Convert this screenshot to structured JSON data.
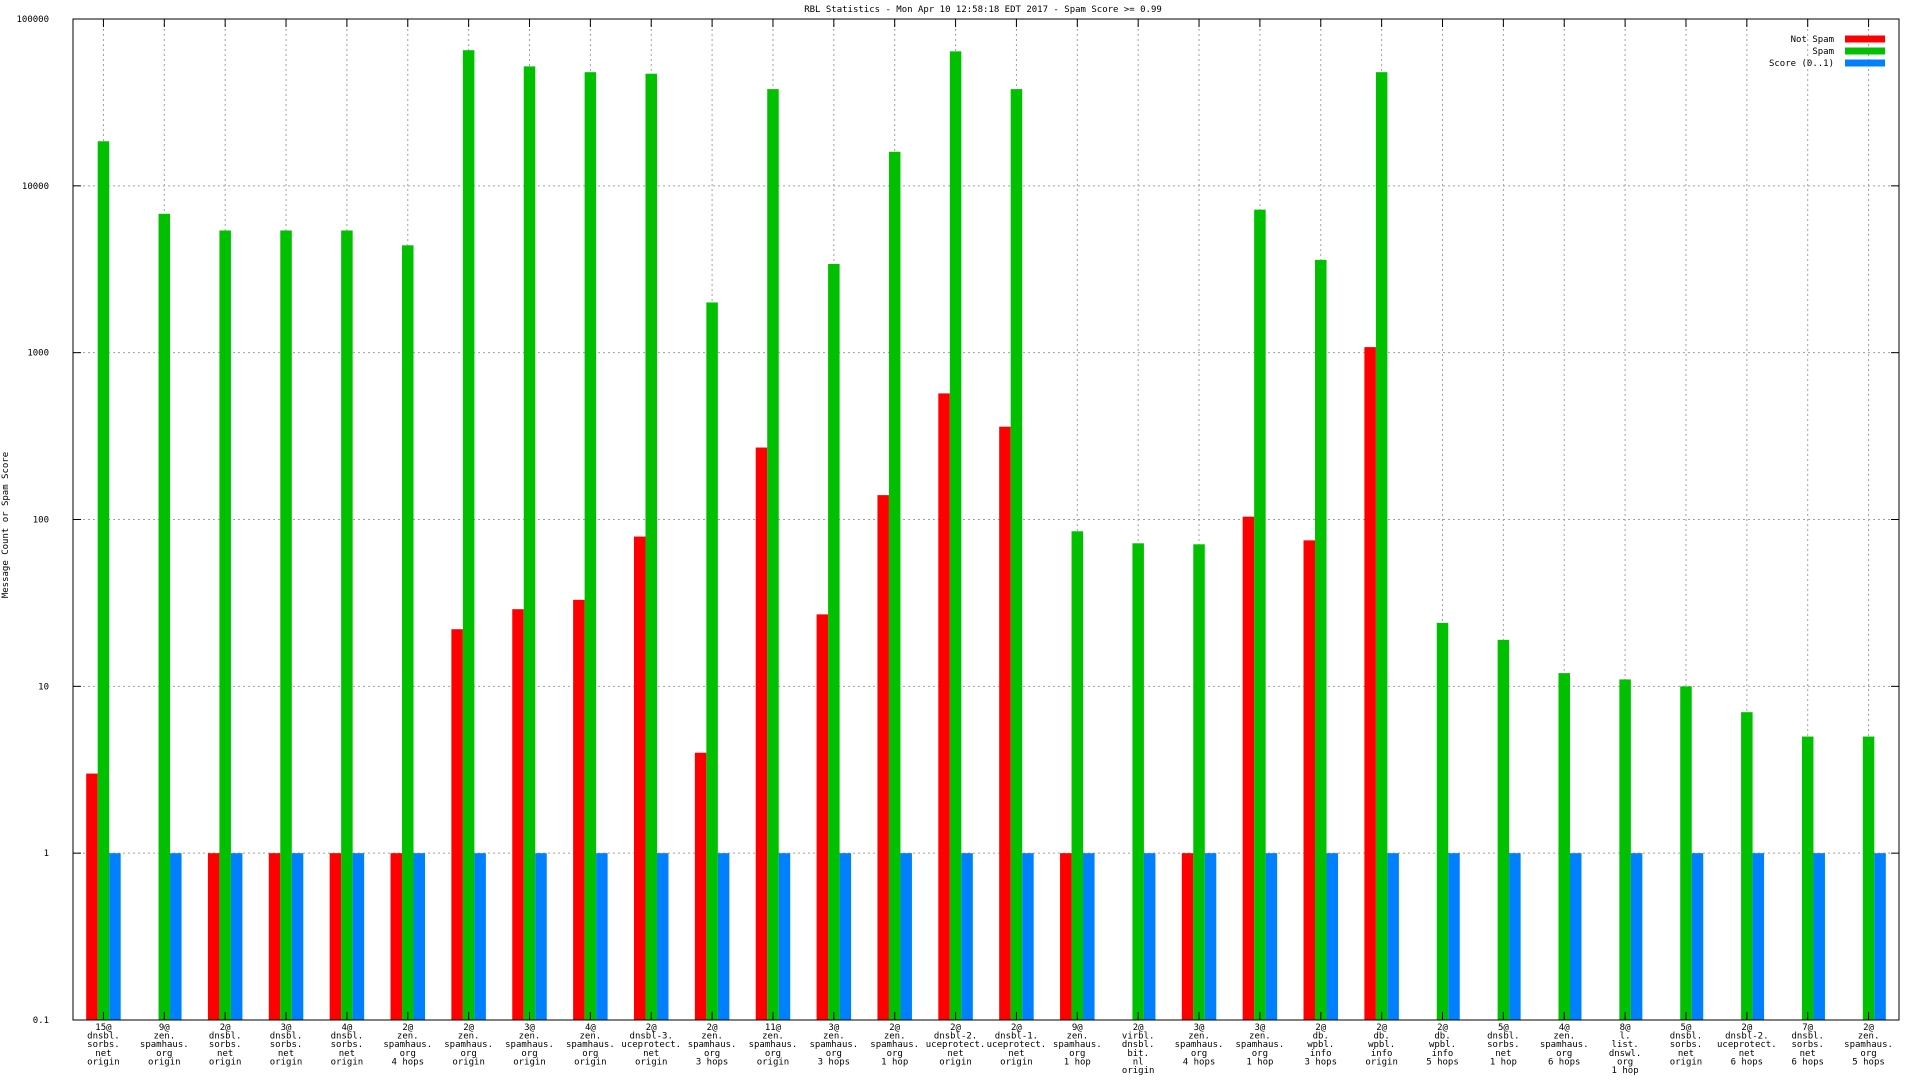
{
  "chart_data": {
    "type": "bar",
    "title": "RBL Statistics - Mon Apr 10 12:58:18 EDT 2017 - Spam Score >= 0.99",
    "xlabel": "",
    "ylabel": "Message Count or Spam Score",
    "yscale": "log",
    "ylim": [
      0.1,
      100000
    ],
    "yticks": [
      "0.1",
      "1",
      "10",
      "100",
      "1000",
      "10000",
      "100000"
    ],
    "grid": true,
    "legend_position": "top-right",
    "categories": [
      [
        "15@",
        "dnsbl.",
        "sorbs.",
        "net",
        "origin"
      ],
      [
        "9@",
        "zen.",
        "spamhaus.",
        "org",
        "origin"
      ],
      [
        "2@",
        "dnsbl.",
        "sorbs.",
        "net",
        "origin"
      ],
      [
        "3@",
        "dnsbl.",
        "sorbs.",
        "net",
        "origin"
      ],
      [
        "4@",
        "dnsbl.",
        "sorbs.",
        "net",
        "origin"
      ],
      [
        "2@",
        "zen.",
        "spamhaus.",
        "org",
        "4 hops"
      ],
      [
        "2@",
        "zen.",
        "spamhaus.",
        "org",
        "origin"
      ],
      [
        "3@",
        "zen.",
        "spamhaus.",
        "org",
        "origin"
      ],
      [
        "4@",
        "zen.",
        "spamhaus.",
        "org",
        "origin"
      ],
      [
        "2@",
        "dnsbl-3.",
        "uceprotect.",
        "net",
        "origin"
      ],
      [
        "2@",
        "zen.",
        "spamhaus.",
        "org",
        "3 hops"
      ],
      [
        "11@",
        "zen.",
        "spamhaus.",
        "org",
        "origin"
      ],
      [
        "3@",
        "zen.",
        "spamhaus.",
        "org",
        "3 hops"
      ],
      [
        "2@",
        "zen.",
        "spamhaus.",
        "org",
        "1 hop"
      ],
      [
        "2@",
        "dnsbl-2.",
        "uceprotect.",
        "net",
        "origin"
      ],
      [
        "2@",
        "dnsbl-1.",
        "uceprotect.",
        "net",
        "origin"
      ],
      [
        "9@",
        "zen.",
        "spamhaus.",
        "org",
        "1 hop"
      ],
      [
        "2@",
        "virbl.",
        "dnsbl.",
        "bit.",
        "nl",
        "origin"
      ],
      [
        "3@",
        "zen.",
        "spamhaus.",
        "org",
        "4 hops"
      ],
      [
        "3@",
        "zen.",
        "spamhaus.",
        "org",
        "1 hop"
      ],
      [
        "2@",
        "db.",
        "wpbl.",
        "info",
        "3 hops"
      ],
      [
        "2@",
        "db.",
        "wpbl.",
        "info",
        "origin"
      ],
      [
        "2@",
        "db.",
        "wpbl.",
        "info",
        "5 hops"
      ],
      [
        "5@",
        "dnsbl.",
        "sorbs.",
        "net",
        "1 hop"
      ],
      [
        "4@",
        "zen.",
        "spamhaus.",
        "org",
        "6 hops"
      ],
      [
        "8@",
        "l.",
        "list.",
        "dnswl.",
        "org",
        "1 hop"
      ],
      [
        "5@",
        "dnsbl.",
        "sorbs.",
        "net",
        "origin"
      ],
      [
        "2@",
        "dnsbl-2.",
        "uceprotect.",
        "net",
        "6 hops"
      ],
      [
        "7@",
        "dnsbl.",
        "sorbs.",
        "net",
        "6 hops"
      ],
      [
        "2@",
        "zen.",
        "spamhaus.",
        "org",
        "5 hops"
      ]
    ],
    "series": [
      {
        "name": "Not Spam",
        "color": "#ff0000",
        "values": [
          3,
          null,
          1,
          1,
          1,
          1,
          22,
          29,
          33,
          79,
          4,
          270,
          27,
          140,
          570,
          360,
          1,
          null,
          1,
          104,
          75,
          1080,
          null,
          null,
          null,
          null,
          null,
          null,
          null,
          null
        ]
      },
      {
        "name": "Spam",
        "color": "#00c000",
        "values": [
          18500,
          6800,
          5400,
          5400,
          5400,
          4400,
          65000,
          52000,
          48000,
          47000,
          2000,
          38000,
          3400,
          16000,
          64000,
          38000,
          85,
          72,
          71,
          7200,
          3600,
          48000,
          24,
          19,
          12,
          11,
          10,
          7,
          5,
          5
        ]
      },
      {
        "name": "Score (0..1)",
        "color": "#0080ff",
        "values": [
          1,
          1,
          1,
          1,
          1,
          1,
          1,
          1,
          1,
          1,
          1,
          1,
          1,
          1,
          1,
          1,
          1,
          1,
          1,
          1,
          1,
          1,
          1,
          1,
          1,
          1,
          1,
          1,
          1,
          1
        ]
      }
    ]
  }
}
